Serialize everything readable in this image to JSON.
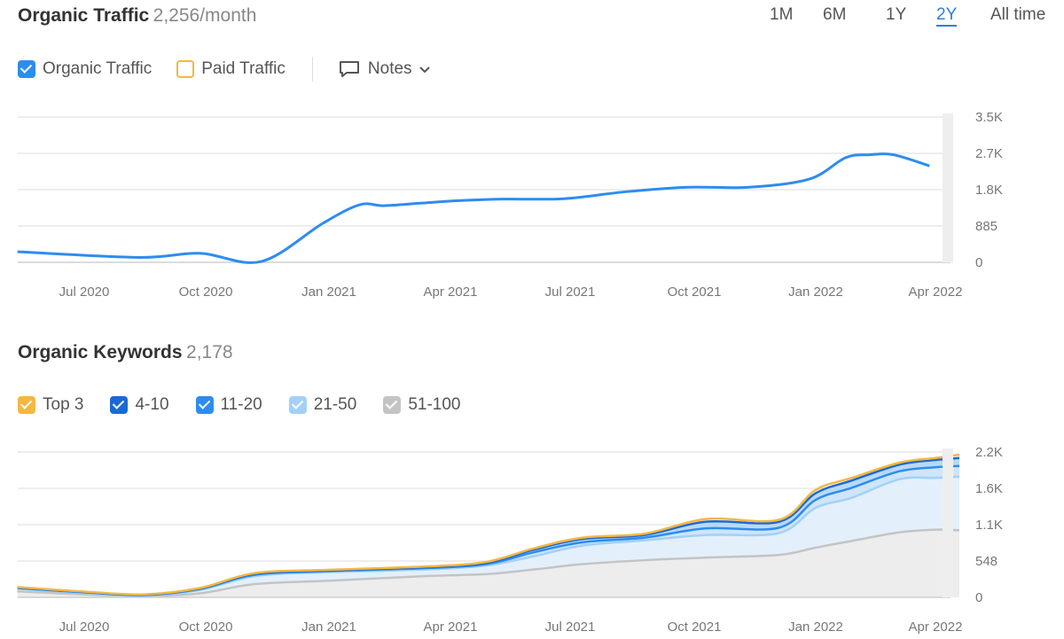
{
  "traffic": {
    "title": "Organic Traffic",
    "value": "2,256/month",
    "ranges": [
      "1M",
      "6M",
      "1Y",
      "2Y",
      "All time"
    ],
    "active_range": "2Y",
    "legend": [
      {
        "label": "Organic Traffic",
        "checked": true,
        "color": "#2d8cf0"
      },
      {
        "label": "Paid Traffic",
        "checked": false,
        "color": "#f5b742"
      }
    ],
    "notes_label": "Notes"
  },
  "keywords": {
    "title": "Organic Keywords",
    "value": "2,178",
    "legend": [
      {
        "label": "Top 3",
        "checked": true,
        "color": "#f5b742"
      },
      {
        "label": "4-10",
        "checked": true,
        "color": "#1a6ad4"
      },
      {
        "label": "11-20",
        "checked": true,
        "color": "#2d8cf0"
      },
      {
        "label": "21-50",
        "checked": true,
        "color": "#a3d0f7"
      },
      {
        "label": "51-100",
        "checked": true,
        "color": "#c4c4c4"
      }
    ]
  },
  "chart_data": [
    {
      "type": "line",
      "title": "Organic Traffic",
      "x_tick_labels": [
        "Jul 2020",
        "Oct 2020",
        "Jan 2021",
        "Apr 2021",
        "Jul 2021",
        "Oct 2021",
        "Jan 2022",
        "Apr 2022"
      ],
      "y_tick_labels": [
        "3.5K",
        "2.7K",
        "1.8K",
        "885",
        "0"
      ],
      "ylim": [
        0,
        3540
      ],
      "series": [
        {
          "name": "Organic Traffic",
          "color": "#2d8cf0",
          "x": [
            0,
            1,
            1.5,
            2,
            2.5,
            2.8,
            3.0,
            3.3,
            3.6,
            4.0,
            4.5,
            5.0,
            5.5,
            6.0,
            6.5,
            6.8,
            7.0,
            7.2,
            7.5
          ],
          "values": [
            260,
            120,
            220,
            20,
            950,
            1400,
            1380,
            1440,
            1500,
            1540,
            1550,
            1720,
            1830,
            1830,
            2030,
            2550,
            2620,
            2620,
            2350
          ]
        }
      ]
    },
    {
      "type": "area",
      "title": "Organic Keywords",
      "x_tick_labels": [
        "Jul 2020",
        "Oct 2020",
        "Jan 2021",
        "Apr 2021",
        "Jul 2021",
        "Oct 2021",
        "Jan 2022",
        "Apr 2022"
      ],
      "y_tick_labels": [
        "2.2K",
        "1.6K",
        "1.1K",
        "548",
        "0"
      ],
      "ylim": [
        0,
        2190
      ]
    }
  ]
}
